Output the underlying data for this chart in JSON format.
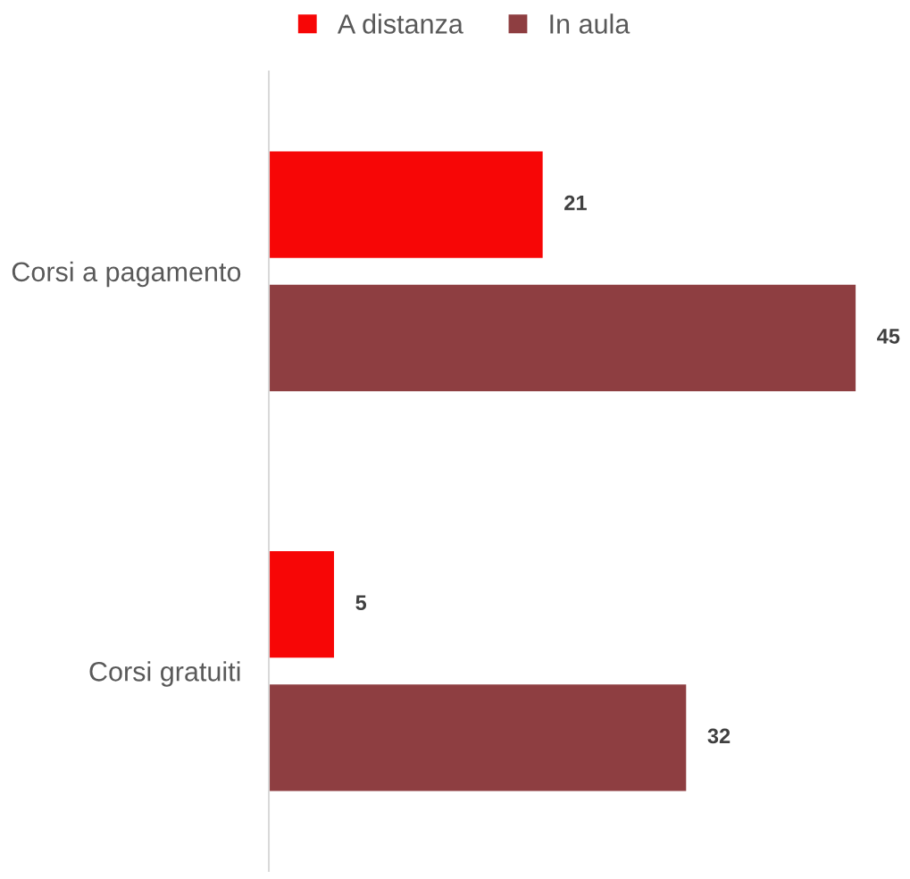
{
  "chart_data": {
    "type": "bar",
    "orientation": "horizontal",
    "categories": [
      "Corsi a pagamento",
      "Corsi gratuiti"
    ],
    "series": [
      {
        "name": "A distanza",
        "color": "#f70606",
        "values": [
          21,
          5
        ]
      },
      {
        "name": "In aula",
        "color": "#8e3e41",
        "values": [
          45,
          32
        ]
      }
    ],
    "data_labels": true,
    "legend": "top",
    "tick_labels": "y"
  }
}
